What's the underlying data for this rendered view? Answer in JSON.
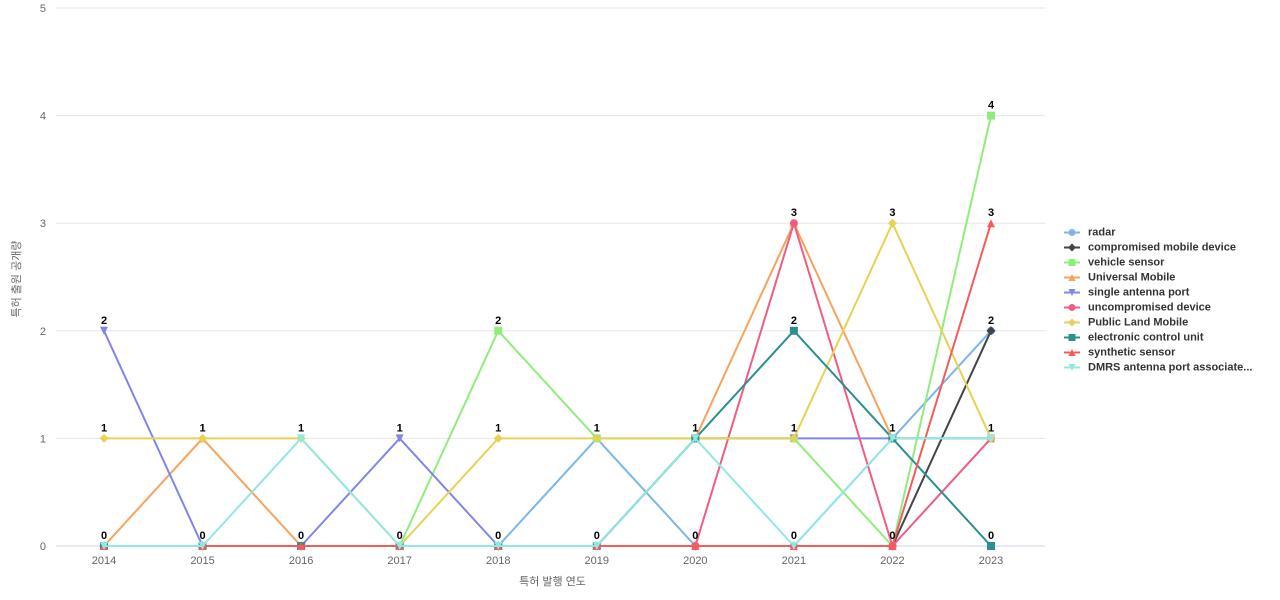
{
  "chart_data": {
    "type": "line",
    "title": "",
    "xlabel": "특허 발행 연도",
    "ylabel": "특허 출원 공개량",
    "ylim": [
      0,
      5
    ],
    "grid": true,
    "legend_position": "right",
    "categories": [
      "2014",
      "2015",
      "2016",
      "2017",
      "2018",
      "2019",
      "2020",
      "2021",
      "2022",
      "2023"
    ],
    "series": [
      {
        "name": "radar",
        "color": "#7cb5ec",
        "marker": "circle",
        "values": [
          0,
          0,
          0,
          0,
          0,
          1,
          0,
          0,
          1,
          2
        ]
      },
      {
        "name": "compromised mobile device",
        "color": "#434348",
        "marker": "diamond",
        "values": [
          0,
          0,
          0,
          0,
          0,
          0,
          0,
          0,
          0,
          2
        ]
      },
      {
        "name": "vehicle sensor",
        "color": "#90ed7d",
        "marker": "square",
        "values": [
          0,
          0,
          0,
          0,
          2,
          1,
          1,
          1,
          0,
          4
        ]
      },
      {
        "name": "Universal Mobile",
        "color": "#f7a35c",
        "marker": "triangle",
        "values": [
          0,
          1,
          0,
          0,
          0,
          0,
          1,
          3,
          1,
          1
        ]
      },
      {
        "name": "single antenna port",
        "color": "#8085e9",
        "marker": "triangle-down",
        "values": [
          2,
          0,
          0,
          1,
          0,
          0,
          1,
          1,
          1,
          1
        ]
      },
      {
        "name": "uncompromised device",
        "color": "#f15c80",
        "marker": "circle",
        "values": [
          0,
          0,
          0,
          0,
          0,
          0,
          0,
          3,
          0,
          1
        ]
      },
      {
        "name": "Public Land Mobile",
        "color": "#e4d354",
        "marker": "diamond",
        "values": [
          1,
          1,
          1,
          0,
          1,
          1,
          1,
          1,
          3,
          1
        ]
      },
      {
        "name": "electronic control unit",
        "color": "#2b908f",
        "marker": "square",
        "values": [
          0,
          0,
          0,
          0,
          0,
          0,
          1,
          2,
          1,
          0
        ]
      },
      {
        "name": "synthetic sensor",
        "color": "#f45b5b",
        "marker": "triangle",
        "values": [
          0,
          0,
          0,
          0,
          0,
          0,
          0,
          0,
          0,
          3
        ]
      },
      {
        "name": "DMRS antenna port associate...",
        "color": "#91e8e1",
        "marker": "triangle-down",
        "values": [
          0,
          0,
          1,
          0,
          0,
          0,
          1,
          0,
          1,
          1
        ]
      }
    ]
  }
}
